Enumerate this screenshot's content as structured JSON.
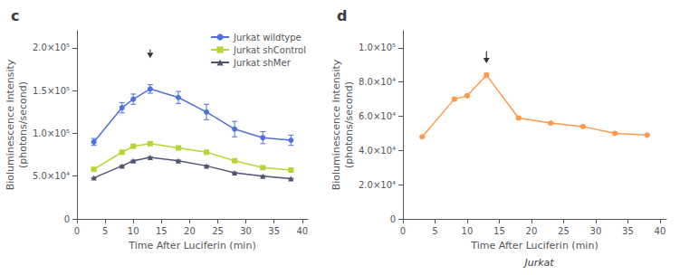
{
  "chart_data": [
    {
      "type": "line",
      "title": "c",
      "xlabel": "Time After Luciferin (min)",
      "ylabel": "Bioluminescence Intensity\n(photons/second)",
      "x": [
        3,
        8,
        10,
        13,
        18,
        23,
        28,
        33,
        38
      ],
      "series": [
        {
          "name": "Jurkat wildtype",
          "marker": "circle",
          "values": [
            90000,
            130000,
            140000,
            152000,
            142000,
            125000,
            105000,
            95000,
            92000
          ],
          "errors": [
            4000,
            6000,
            6000,
            5000,
            7000,
            9000,
            9000,
            7000,
            6000
          ]
        },
        {
          "name": "Jurkat shControl",
          "marker": "square",
          "values": [
            58000,
            78000,
            85000,
            88000,
            83000,
            78000,
            68000,
            60000,
            57000
          ],
          "errors": [
            400,
            700,
            900,
            900,
            1100,
            1100,
            900,
            700,
            700
          ]
        },
        {
          "name": "Jurkat shMer",
          "marker": "triangle",
          "values": [
            48000,
            62000,
            68000,
            72000,
            68000,
            62000,
            54000,
            50000,
            47000
          ],
          "errors": [
            400,
            500,
            700,
            700,
            800,
            800,
            700,
            600,
            500
          ]
        }
      ],
      "arrow": {
        "x": 13,
        "y_tip": 188000,
        "y_tail": 198000
      },
      "xlim": [
        0,
        41
      ],
      "xticks": [
        0,
        5,
        10,
        15,
        20,
        25,
        30,
        35,
        40
      ],
      "ylim": [
        0,
        220000
      ],
      "yticks": [
        0,
        {
          "value": 50000,
          "label": "5.0×10⁴"
        },
        {
          "value": 100000,
          "label": "1.0×10⁵"
        },
        {
          "value": 150000,
          "label": "1.5×10⁵"
        },
        {
          "value": 200000,
          "label": "2.0×10⁵"
        }
      ],
      "grid": false,
      "legend": "upper right"
    },
    {
      "type": "line",
      "title": "d",
      "subtitle": "Jurkat",
      "xlabel": "Time After Luciferin (min)",
      "ylabel": "Bioluminescence Intensity\n(photons/second)",
      "x": [
        3,
        8,
        10,
        13,
        18,
        23,
        28,
        33,
        38
      ],
      "series": [
        {
          "marker": "circle",
          "values": [
            48000,
            70000,
            72000,
            84000,
            59000,
            56000,
            54000,
            50000,
            49000
          ],
          "errors": [
            400,
            900,
            900,
            1300,
            700,
            700,
            700,
            600,
            600
          ]
        }
      ],
      "arrow": {
        "x": 13,
        "y_tip": 91000,
        "y_tail": 98000
      },
      "xlim": [
        0,
        41
      ],
      "xticks": [
        0,
        5,
        10,
        15,
        20,
        25,
        30,
        35,
        40
      ],
      "ylim": [
        0,
        110000
      ],
      "yticks": [
        0,
        {
          "value": 20000,
          "label": "2.0×10⁴"
        },
        {
          "value": 40000,
          "label": "4.0×10⁴"
        },
        {
          "value": 60000,
          "label": "6.0×10⁴"
        },
        {
          "value": 80000,
          "label": "8.0×10⁴"
        },
        {
          "value": 100000,
          "label": "1.0×10⁵"
        }
      ],
      "grid": false
    }
  ]
}
